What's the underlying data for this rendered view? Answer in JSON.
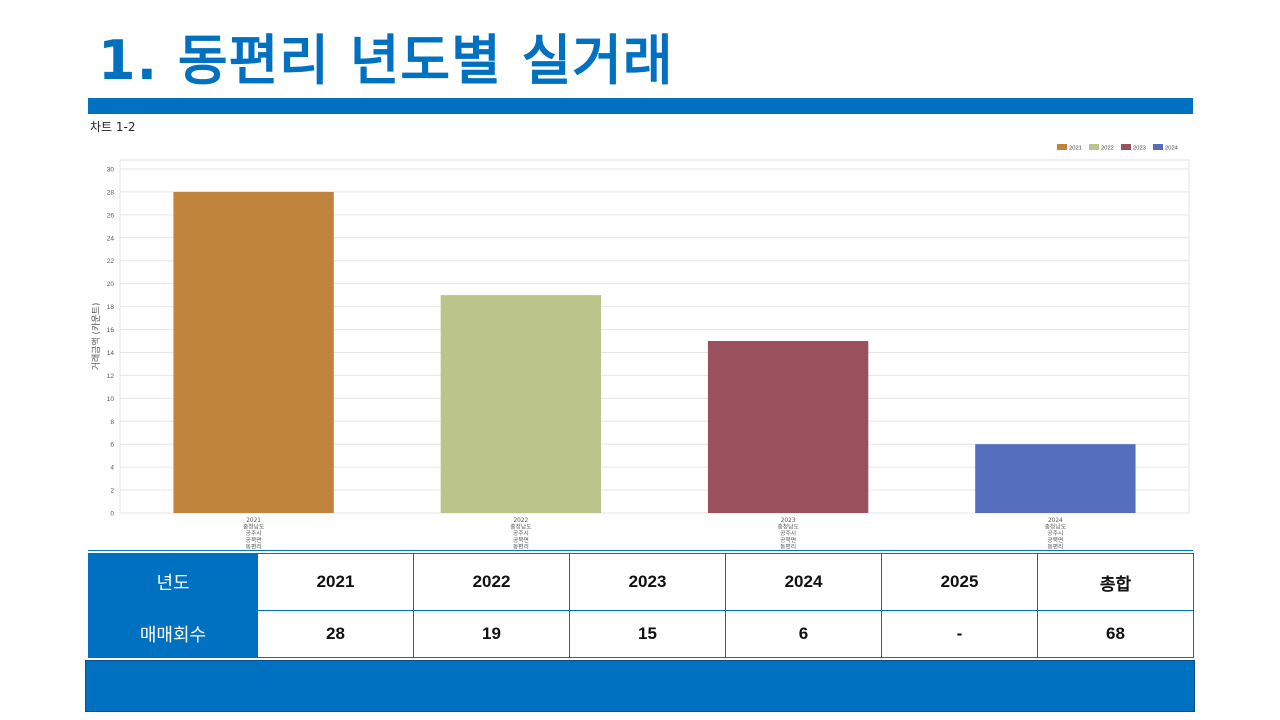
{
  "slide": {
    "title": "1. 동편리 년도별 실거래"
  },
  "chart_caption": "차트 1-2",
  "chart_data": {
    "type": "bar",
    "categories": [
      "2021",
      "2022",
      "2023",
      "2024"
    ],
    "category_sublabels": [
      [
        "2021",
        "충청남도",
        "공주시",
        "공북면",
        "동편리"
      ],
      [
        "2022",
        "충청남도",
        "공주시",
        "공북면",
        "동편리"
      ],
      [
        "2023",
        "충청남도",
        "공주시",
        "공북면",
        "동편리"
      ],
      [
        "2024",
        "충청남도",
        "공주시",
        "공북면",
        "동편리"
      ]
    ],
    "values": [
      28,
      19,
      15,
      6
    ],
    "colors": [
      "#c1843d",
      "#bbc48b",
      "#9b505d",
      "#546dbc"
    ],
    "ylabel": "거래금액 (카운트)",
    "ylim": [
      0,
      30
    ],
    "yticks": [
      0,
      2,
      4,
      6,
      8,
      10,
      12,
      14,
      16,
      18,
      20,
      22,
      24,
      26,
      28,
      30
    ],
    "legend": {
      "position": "top-right",
      "entries": [
        "2021",
        "2022",
        "2023",
        "2024"
      ]
    },
    "grid": true
  },
  "table": {
    "header_label": "년도",
    "years": [
      "2021",
      "2022",
      "2023",
      "2024",
      "2025",
      "총합"
    ],
    "row_label": "매매회수",
    "counts": [
      "28",
      "19",
      "15",
      "6",
      "-",
      "68"
    ]
  }
}
